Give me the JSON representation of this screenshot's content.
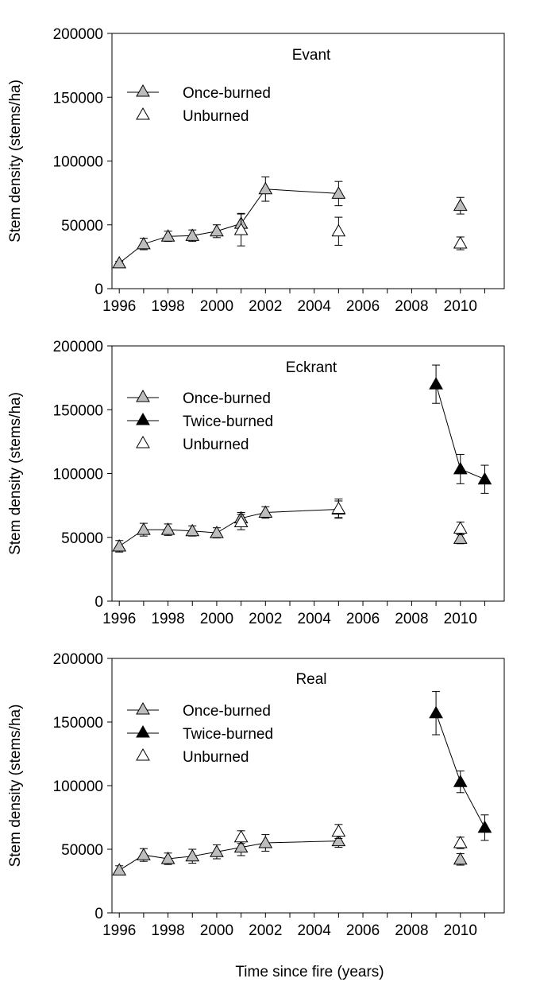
{
  "figure": {
    "xlabel": "Time since fire (years)"
  },
  "chart_data": [
    {
      "type": "scatter",
      "title": "Evant",
      "ylabel": "Stem density (stems/ha)",
      "xlim": [
        1995.7,
        2011.8
      ],
      "ylim": [
        0,
        200000
      ],
      "xticks": [
        1996,
        1998,
        2000,
        2002,
        2004,
        2006,
        2008,
        2010
      ],
      "yticks": [
        0,
        50000,
        100000,
        150000,
        200000
      ],
      "legend": [
        "Once-burned",
        "Unburned"
      ],
      "series": [
        {
          "name": "Once-burned",
          "marker": "triangle",
          "fill": "#bdbdbd",
          "segments": [
            [
              0,
              1,
              2,
              3,
              4,
              5,
              6,
              7
            ]
          ],
          "points": [
            {
              "x": 1996,
              "y": 20000,
              "err": 1500
            },
            {
              "x": 1997,
              "y": 35000,
              "err": 4500
            },
            {
              "x": 1998,
              "y": 41000,
              "err": 4000
            },
            {
              "x": 1999,
              "y": 41500,
              "err": 4500
            },
            {
              "x": 2000,
              "y": 45000,
              "err": 5000
            },
            {
              "x": 2001,
              "y": 51000,
              "err": 8000
            },
            {
              "x": 2002,
              "y": 78000,
              "err": 9500
            },
            {
              "x": 2005,
              "y": 74500,
              "err": 9500
            },
            {
              "x": 2010,
              "y": 65000,
              "err": 6500
            }
          ]
        },
        {
          "name": "Unburned",
          "marker": "triangle",
          "fill": "#ffffff",
          "segments": [],
          "points": [
            {
              "x": 2001,
              "y": 46000,
              "err": 12500
            },
            {
              "x": 2005,
              "y": 45000,
              "err": 11000
            },
            {
              "x": 2010,
              "y": 35500,
              "err": 5000
            }
          ]
        }
      ]
    },
    {
      "type": "scatter",
      "title": "Eckrant",
      "ylabel": "Stem density (stems/ha)",
      "xlim": [
        1995.7,
        2011.8
      ],
      "ylim": [
        0,
        200000
      ],
      "xticks": [
        1996,
        1998,
        2000,
        2002,
        2004,
        2006,
        2008,
        2010
      ],
      "yticks": [
        0,
        50000,
        100000,
        150000,
        200000
      ],
      "legend": [
        "Once-burned",
        "Twice-burned",
        "Unburned"
      ],
      "series": [
        {
          "name": "Once-burned",
          "marker": "triangle",
          "fill": "#bdbdbd",
          "segments": [
            [
              0,
              1,
              2,
              3,
              4,
              5,
              6,
              7
            ]
          ],
          "points": [
            {
              "x": 1996,
              "y": 43000,
              "err": 4500
            },
            {
              "x": 1997,
              "y": 56000,
              "err": 5000
            },
            {
              "x": 1998,
              "y": 56000,
              "err": 4500
            },
            {
              "x": 1999,
              "y": 55000,
              "err": 4000
            },
            {
              "x": 2000,
              "y": 53500,
              "err": 4000
            },
            {
              "x": 2001,
              "y": 65000,
              "err": 4500
            },
            {
              "x": 2002,
              "y": 69500,
              "err": 4500
            },
            {
              "x": 2005,
              "y": 72000,
              "err": 6500
            },
            {
              "x": 2010,
              "y": 49000,
              "err": 4000
            }
          ]
        },
        {
          "name": "Twice-burned",
          "marker": "triangle",
          "fill": "#000000",
          "segments": [
            [
              0,
              1,
              2
            ]
          ],
          "points": [
            {
              "x": 2009,
              "y": 170000,
              "err": 15000
            },
            {
              "x": 2010,
              "y": 103500,
              "err": 11500
            },
            {
              "x": 2011,
              "y": 95500,
              "err": 11000
            }
          ]
        },
        {
          "name": "Unburned",
          "marker": "triangle",
          "fill": "#ffffff",
          "segments": [],
          "points": [
            {
              "x": 2001,
              "y": 62000,
              "err": 6000
            },
            {
              "x": 2005,
              "y": 72500,
              "err": 7500
            },
            {
              "x": 2010,
              "y": 57000,
              "err": 5000
            }
          ]
        }
      ]
    },
    {
      "type": "scatter",
      "title": "Real",
      "ylabel": "Stem density (stems/ha)",
      "xlim": [
        1995.7,
        2011.8
      ],
      "ylim": [
        0,
        200000
      ],
      "xticks": [
        1996,
        1998,
        2000,
        2002,
        2004,
        2006,
        2008,
        2010
      ],
      "yticks": [
        0,
        50000,
        100000,
        150000,
        200000
      ],
      "legend": [
        "Once-burned",
        "Twice-burned",
        "Unburned"
      ],
      "series": [
        {
          "name": "Once-burned",
          "marker": "triangle",
          "fill": "#bdbdbd",
          "segments": [
            [
              0,
              1,
              2,
              3,
              4,
              5,
              6,
              7
            ]
          ],
          "points": [
            {
              "x": 1996,
              "y": 33500,
              "err": 3500
            },
            {
              "x": 1997,
              "y": 45500,
              "err": 5000
            },
            {
              "x": 1998,
              "y": 42500,
              "err": 4500
            },
            {
              "x": 1999,
              "y": 44500,
              "err": 5500
            },
            {
              "x": 2000,
              "y": 48000,
              "err": 5500
            },
            {
              "x": 2001,
              "y": 51500,
              "err": 6500
            },
            {
              "x": 2002,
              "y": 55000,
              "err": 6500
            },
            {
              "x": 2005,
              "y": 56500,
              "err": 5000
            },
            {
              "x": 2010,
              "y": 42000,
              "err": 4500
            }
          ]
        },
        {
          "name": "Twice-burned",
          "marker": "triangle",
          "fill": "#000000",
          "segments": [
            [
              0,
              1,
              2
            ]
          ],
          "points": [
            {
              "x": 2009,
              "y": 157000,
              "err": 17000
            },
            {
              "x": 2010,
              "y": 103000,
              "err": 8500
            },
            {
              "x": 2011,
              "y": 67000,
              "err": 10000
            }
          ]
        },
        {
          "name": "Unburned",
          "marker": "triangle",
          "fill": "#ffffff",
          "segments": [],
          "points": [
            {
              "x": 2001,
              "y": 59500,
              "err": 5000
            },
            {
              "x": 2005,
              "y": 64000,
              "err": 5500
            },
            {
              "x": 2010,
              "y": 55000,
              "err": 4500
            }
          ]
        }
      ]
    }
  ]
}
